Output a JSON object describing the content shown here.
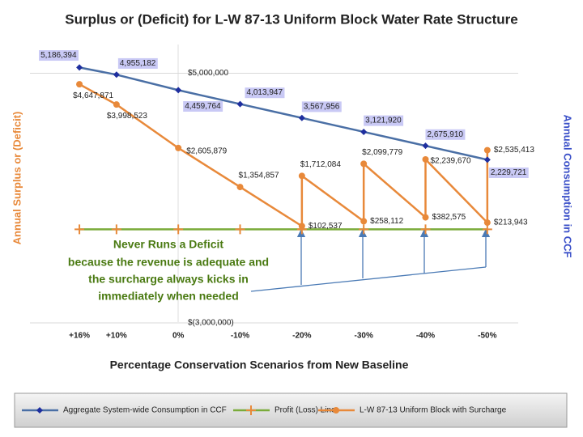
{
  "chart_data": {
    "type": "line",
    "title": "Surplus or (Deficit) for L-W 87-13 Uniform Block Water Rate Structure",
    "x_label": "Percentage Conservation Scenarios from New Baseline",
    "y_label": "Annual Surplus or (Deficit)",
    "y2_label": "Annual Consumption in CCF",
    "xlim": [
      24,
      -55
    ],
    "xticks": [
      {
        "value": 16,
        "label": "+16%"
      },
      {
        "value": 10,
        "label": "+10%"
      },
      {
        "value": 0,
        "label": "0%"
      },
      {
        "value": -10,
        "label": "-10%"
      },
      {
        "value": -20,
        "label": "-20%"
      },
      {
        "value": -30,
        "label": "-30%"
      },
      {
        "value": -40,
        "label": "-40%"
      },
      {
        "value": -50,
        "label": "-50%"
      }
    ],
    "ylim": [
      -3000000,
      6000000
    ],
    "yticks": [
      {
        "value": 5000000,
        "label": "$5,000,000"
      },
      {
        "value": -3000000,
        "label": "$(3,000,000)"
      }
    ],
    "y2lim": [
      -3000000,
      6000000
    ],
    "grid": true,
    "legend": "bottom",
    "annotation": [
      "Never Runs a Deficit",
      "because the revenue is adequate and",
      "the surcharge always kicks in",
      "immediately when needed"
    ],
    "series": [
      {
        "name": "Aggregate System-wide Consumption in CCF",
        "color": "#4a6fa5",
        "marker": "diamond",
        "marker_color": "#1f2f9f",
        "axis": "y2",
        "x": [
          16,
          10,
          0,
          -10,
          -20,
          -30,
          -40,
          -50
        ],
        "values": [
          5186394,
          4955182,
          4459764,
          4013947,
          3567956,
          3121920,
          2675910,
          2229721
        ],
        "value_labels": [
          "5,186,394",
          "4,955,182",
          "4,459,764",
          "4,013,947",
          "3,567,956",
          "3,121,920",
          "2,675,910",
          "2,229,721"
        ]
      },
      {
        "name": "Profit (Loss) Line",
        "color": "#7aab3a",
        "marker": "plus",
        "marker_color": "#e8893a",
        "x": [
          16,
          10,
          0,
          -10,
          -20,
          -30,
          -40,
          -50
        ],
        "values": [
          0,
          0,
          0,
          0,
          0,
          0,
          0,
          0
        ]
      },
      {
        "name": "L-W 87-13 Uniform Block with Surcharge",
        "color": "#e8893a",
        "marker": "circle",
        "marker_color": "#e8893a",
        "x": [
          16,
          10,
          0,
          -10,
          -20,
          -20,
          -30,
          -30,
          -40,
          -40,
          -50,
          -50
        ],
        "values": [
          4647871,
          3998523,
          2605879,
          1354857,
          102537,
          1712084,
          258112,
          2099779,
          382575,
          2239670,
          213943,
          2535413
        ],
        "value_labels": [
          "$4,647,871",
          "$3,998,523",
          "$2,605,879",
          "$1,354,857",
          "$102,537",
          "$1,712,084",
          "$258,112",
          "$2,099,779",
          "$382,575",
          "$2,239,670",
          "$213,943",
          "$2,535,413"
        ]
      }
    ]
  }
}
